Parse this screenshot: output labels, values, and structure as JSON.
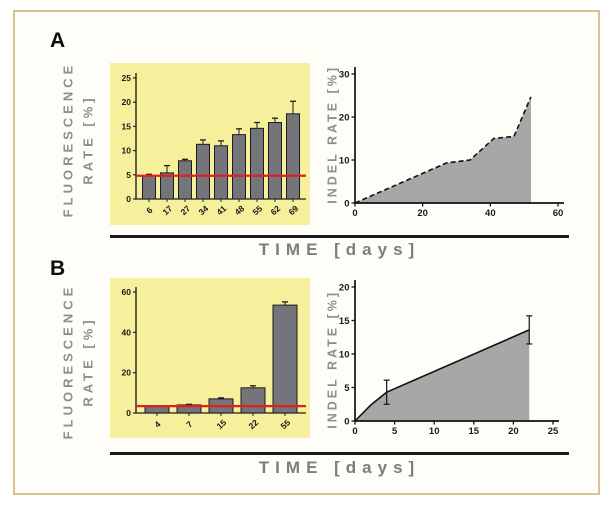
{
  "figure": {
    "border_color": "#d8c28e",
    "background": "#fffdf8",
    "time_axis_label": "TIME [days]"
  },
  "panels": [
    {
      "label": "A",
      "fluorescence_label": {
        "line1": "FLUORESCENCE",
        "line2": "RATE [%]"
      },
      "indel_label": "INDEL RATE [%]"
    },
    {
      "label": "B",
      "fluorescence_label": {
        "line1": "FLUORESCENCE",
        "line2": "RATE [%]"
      },
      "indel_label": "INDEL RATE [%]"
    }
  ],
  "chart_data": [
    {
      "id": "panel-a-fluorescence-bars",
      "type": "bar",
      "panel": "A",
      "title": "",
      "ylabel": "FLUORESCENCE RATE [%]",
      "xlabel": "TIME [days]",
      "categories": [
        "6",
        "17",
        "27",
        "34",
        "41",
        "48",
        "55",
        "62",
        "69"
      ],
      "values": [
        4.8,
        5.4,
        7.9,
        11.3,
        11.0,
        13.3,
        14.6,
        15.8,
        17.6
      ],
      "errors": [
        0.3,
        1.5,
        0.3,
        0.9,
        1.0,
        1.2,
        1.2,
        0.9,
        2.6
      ],
      "reference_line": 4.8,
      "ylim": [
        0,
        25
      ],
      "yticks": [
        0,
        5,
        10,
        15,
        20,
        25
      ],
      "grid": false,
      "plot_bg": "#f6ef9c",
      "bar_color": "#74747b",
      "bar_edge_color": "#1d1d1d",
      "reference_line_color": "#e0201c"
    },
    {
      "id": "panel-a-indel-area",
      "type": "area",
      "panel": "A",
      "title": "",
      "ylabel": "INDEL RATE [%]",
      "xlabel": "TIME [days]",
      "x": [
        0,
        27,
        34,
        41,
        47,
        52
      ],
      "y": [
        0,
        9.3,
        10.0,
        15.0,
        15.5,
        24.7
      ],
      "error_points": [],
      "xlim": [
        0,
        60
      ],
      "ylim": [
        0,
        30
      ],
      "xticks": [
        0,
        20,
        40,
        60
      ],
      "yticks": [
        0,
        10,
        20,
        30
      ],
      "grid": false,
      "line_style": "dashed",
      "line_color": "#111111",
      "fill_color": "#a7a7a7"
    },
    {
      "id": "panel-b-fluorescence-bars",
      "type": "bar",
      "panel": "B",
      "title": "",
      "ylabel": "FLUORESCENCE RATE [%]",
      "xlabel": "TIME [days]",
      "categories": [
        "4",
        "7",
        "15",
        "22",
        "55"
      ],
      "values": [
        3.2,
        4.0,
        7.0,
        12.5,
        53.5
      ],
      "errors": [
        0,
        0.3,
        0.5,
        1.0,
        1.6
      ],
      "reference_line": 3.4,
      "ylim": [
        0,
        60
      ],
      "yticks": [
        0,
        20,
        40,
        60
      ],
      "grid": false,
      "plot_bg": "#f6ef9c",
      "bar_color": "#74747b",
      "bar_edge_color": "#1d1d1d",
      "reference_line_color": "#e0201c"
    },
    {
      "id": "panel-b-indel-area",
      "type": "area",
      "panel": "B",
      "title": "",
      "ylabel": "INDEL RATE [%]",
      "xlabel": "TIME [days]",
      "x": [
        0,
        2,
        4,
        22
      ],
      "y": [
        0,
        2.4,
        4.3,
        13.6
      ],
      "error_points": [
        {
          "x": 4,
          "y": 4.3,
          "err": 1.8
        },
        {
          "x": 22,
          "y": 13.6,
          "err": 2.1
        }
      ],
      "xlim": [
        0,
        25
      ],
      "ylim": [
        0,
        20
      ],
      "xticks": [
        0,
        5,
        10,
        15,
        20,
        25
      ],
      "yticks": [
        0,
        5,
        10,
        15,
        20
      ],
      "grid": false,
      "line_style": "solid",
      "line_color": "#111111",
      "fill_color": "#a7a7a7"
    }
  ]
}
